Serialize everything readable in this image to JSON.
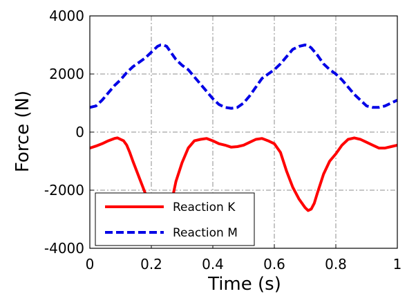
{
  "chart_data": {
    "type": "line",
    "title": "",
    "xlabel": "Time (s)",
    "ylabel": "Force (N)",
    "xlim": [
      0,
      1
    ],
    "ylim": [
      -4000,
      4000
    ],
    "xticks": [
      "0",
      "0.2",
      "0.4",
      "0.6",
      "0.8",
      "1"
    ],
    "yticks": [
      "-4000",
      "-2000",
      "0",
      "2000",
      "4000"
    ],
    "grid": true,
    "legend_position": "lower-left",
    "series": [
      {
        "name": "Reaction K",
        "color": "#ff0000",
        "style": "solid",
        "x": [
          0.0,
          0.02,
          0.04,
          0.06,
          0.08,
          0.09,
          0.1,
          0.11,
          0.12,
          0.13,
          0.14,
          0.16,
          0.18,
          0.2,
          0.22,
          0.23,
          0.24,
          0.25,
          0.26,
          0.27,
          0.28,
          0.3,
          0.32,
          0.34,
          0.36,
          0.38,
          0.4,
          0.42,
          0.44,
          0.46,
          0.48,
          0.5,
          0.52,
          0.54,
          0.56,
          0.58,
          0.6,
          0.62,
          0.64,
          0.66,
          0.68,
          0.7,
          0.71,
          0.72,
          0.73,
          0.74,
          0.76,
          0.78,
          0.8,
          0.82,
          0.84,
          0.86,
          0.88,
          0.9,
          0.92,
          0.94,
          0.96,
          0.98,
          1.0
        ],
        "y": [
          -550,
          -480,
          -400,
          -300,
          -220,
          -200,
          -250,
          -300,
          -450,
          -700,
          -1000,
          -1550,
          -2100,
          -2550,
          -2950,
          -3100,
          -3150,
          -3000,
          -2650,
          -2200,
          -1700,
          -1050,
          -550,
          -300,
          -250,
          -220,
          -300,
          -400,
          -450,
          -520,
          -500,
          -450,
          -350,
          -250,
          -220,
          -300,
          -400,
          -700,
          -1350,
          -1900,
          -2300,
          -2600,
          -2700,
          -2650,
          -2450,
          -2100,
          -1450,
          -1000,
          -750,
          -450,
          -250,
          -200,
          -250,
          -350,
          -450,
          -550,
          -550,
          -500,
          -450
        ]
      },
      {
        "name": "Reaction M",
        "color": "#0000e6",
        "style": "dashed",
        "x": [
          0.0,
          0.02,
          0.04,
          0.06,
          0.08,
          0.1,
          0.12,
          0.14,
          0.16,
          0.18,
          0.2,
          0.22,
          0.23,
          0.24,
          0.25,
          0.26,
          0.28,
          0.3,
          0.32,
          0.34,
          0.36,
          0.38,
          0.4,
          0.42,
          0.44,
          0.46,
          0.47,
          0.48,
          0.5,
          0.52,
          0.54,
          0.56,
          0.58,
          0.6,
          0.62,
          0.64,
          0.66,
          0.68,
          0.7,
          0.71,
          0.72,
          0.74,
          0.76,
          0.78,
          0.8,
          0.82,
          0.84,
          0.86,
          0.88,
          0.9,
          0.92,
          0.94,
          0.96,
          0.98,
          1.0
        ],
        "y": [
          850,
          900,
          1100,
          1350,
          1600,
          1800,
          2050,
          2250,
          2400,
          2550,
          2750,
          2950,
          3000,
          3000,
          2950,
          2800,
          2500,
          2300,
          2150,
          1900,
          1650,
          1400,
          1150,
          950,
          850,
          820,
          830,
          850,
          1000,
          1250,
          1550,
          1850,
          2000,
          2150,
          2350,
          2600,
          2850,
          2950,
          3000,
          2980,
          2900,
          2650,
          2350,
          2150,
          2000,
          1800,
          1550,
          1300,
          1100,
          900,
          850,
          850,
          900,
          1000,
          1100
        ]
      }
    ]
  }
}
